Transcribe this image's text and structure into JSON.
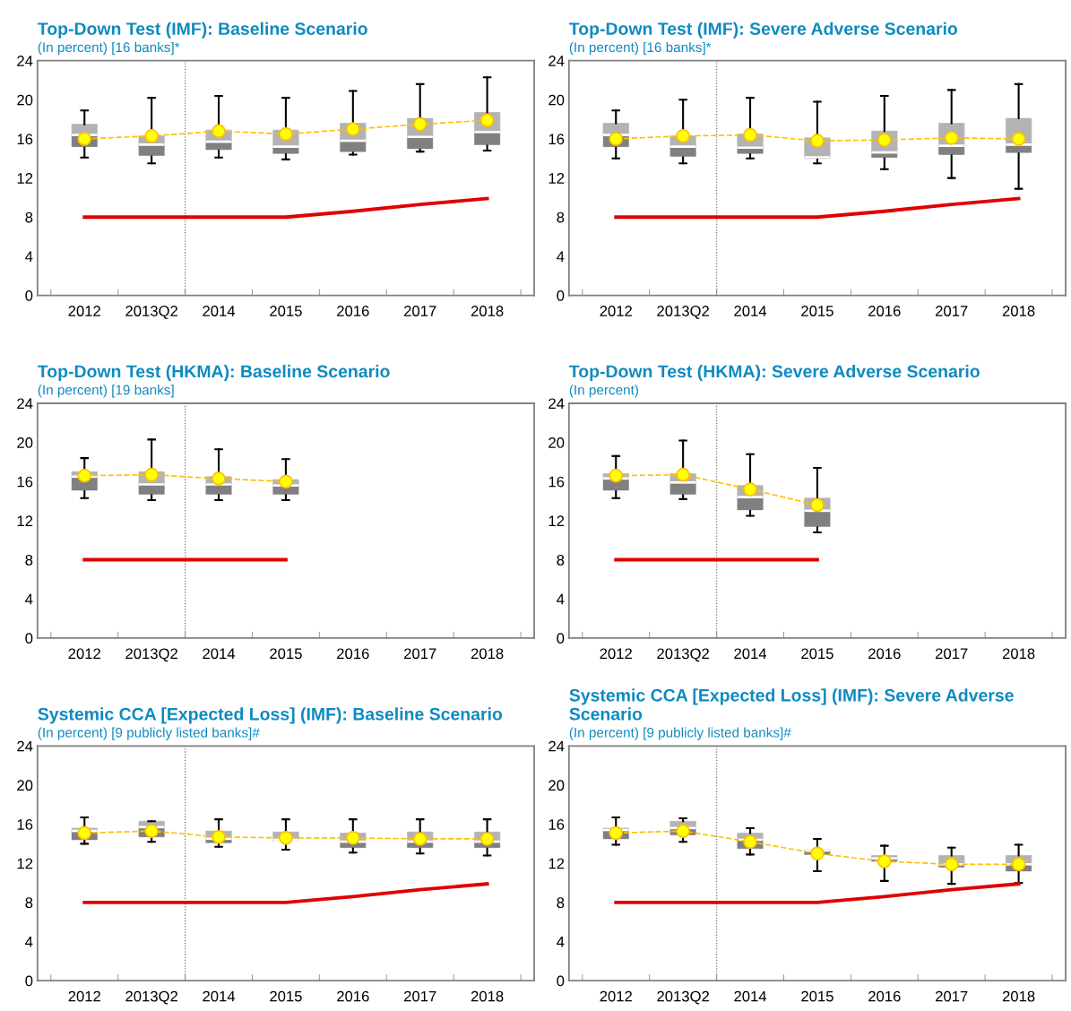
{
  "chart_data": [
    {
      "type": "box",
      "title": "Top-Down Test (IMF): Baseline Scenario",
      "subtitle": "(In percent) [16 banks]*",
      "categories": [
        "2012",
        "2013Q2",
        "2014",
        "2015",
        "2016",
        "2017",
        "2018"
      ],
      "ylim": [
        0,
        24
      ],
      "yticks": [
        0,
        4,
        8,
        12,
        16,
        20,
        24
      ],
      "grid": false,
      "legend": false,
      "series": [
        {
          "type": "box",
          "color": "#808080",
          "boxes": [
            {
              "low": 14.1,
              "q1": 15.2,
              "median": 16.4,
              "q3": 17.5,
              "high": 18.9
            },
            {
              "low": 13.5,
              "q1": 14.3,
              "median": 15.4,
              "q3": 16.3,
              "high": 20.2
            },
            {
              "low": 14.1,
              "q1": 14.9,
              "median": 15.7,
              "q3": 16.9,
              "high": 20.4
            },
            {
              "low": 13.9,
              "q1": 14.5,
              "median": 15.2,
              "q3": 16.9,
              "high": 20.2
            },
            {
              "low": 14.4,
              "q1": 14.7,
              "median": 15.8,
              "q3": 17.6,
              "high": 20.9
            },
            {
              "low": 14.7,
              "q1": 15.0,
              "median": 16.2,
              "q3": 18.1,
              "high": 21.6
            },
            {
              "low": 14.8,
              "q1": 15.4,
              "median": 16.7,
              "q3": 18.7,
              "high": 22.3
            }
          ]
        },
        {
          "type": "line",
          "color": "#ffc000",
          "line_style": "dashed",
          "marker": "circle",
          "values": [
            16.0,
            16.3,
            16.8,
            16.5,
            17.0,
            17.5,
            17.9
          ]
        },
        {
          "type": "line",
          "color": "#e00000",
          "line_style": "solid",
          "marker": "none",
          "values": [
            8,
            8,
            8,
            8,
            8.6,
            9.3,
            9.9
          ]
        }
      ]
    },
    {
      "type": "box",
      "title": "Top-Down Test (IMF): Severe Adverse Scenario",
      "subtitle": "(In percent) [16 banks]*",
      "categories": [
        "2012",
        "2013Q2",
        "2014",
        "2015",
        "2016",
        "2017",
        "2018"
      ],
      "ylim": [
        0,
        24
      ],
      "yticks": [
        0,
        4,
        8,
        12,
        16,
        20,
        24
      ],
      "grid": false,
      "legend": false,
      "series": [
        {
          "type": "box",
          "color": "#808080",
          "boxes": [
            {
              "low": 14.0,
              "q1": 15.2,
              "median": 16.4,
              "q3": 17.6,
              "high": 18.9
            },
            {
              "low": 13.5,
              "q1": 14.2,
              "median": 15.2,
              "q3": 16.3,
              "high": 20.0
            },
            {
              "low": 14.0,
              "q1": 14.5,
              "median": 15.1,
              "q3": 16.5,
              "high": 20.2
            },
            {
              "low": 13.5,
              "q1": 14.0,
              "median": 14.1,
              "q3": 16.1,
              "high": 19.8
            },
            {
              "low": 12.9,
              "q1": 14.1,
              "median": 14.6,
              "q3": 16.8,
              "high": 20.4
            },
            {
              "low": 12.0,
              "q1": 14.4,
              "median": 15.3,
              "q3": 17.6,
              "high": 21.0
            },
            {
              "low": 10.9,
              "q1": 14.6,
              "median": 15.4,
              "q3": 18.1,
              "high": 21.6
            }
          ]
        },
        {
          "type": "line",
          "color": "#ffc000",
          "line_style": "dashed",
          "marker": "circle",
          "values": [
            16.0,
            16.3,
            16.4,
            15.8,
            15.9,
            16.1,
            16.0
          ]
        },
        {
          "type": "line",
          "color": "#e00000",
          "line_style": "solid",
          "marker": "none",
          "values": [
            8,
            8,
            8,
            8,
            8.6,
            9.3,
            9.9
          ]
        }
      ]
    },
    {
      "type": "box",
      "title": "Top-Down Test (HKMA): Baseline Scenario",
      "subtitle": "(In percent) [19 banks]",
      "categories": [
        "2012",
        "2013Q2",
        "2014",
        "2015",
        "2016",
        "2017",
        "2018"
      ],
      "ylim": [
        0,
        24
      ],
      "yticks": [
        0,
        4,
        8,
        12,
        16,
        20,
        24
      ],
      "grid": false,
      "legend": false,
      "series": [
        {
          "type": "box",
          "color": "#808080",
          "boxes": [
            {
              "low": 14.3,
              "q1": 15.1,
              "median": 16.5,
              "q3": 17.0,
              "high": 18.4
            },
            {
              "low": 14.1,
              "q1": 14.7,
              "median": 15.7,
              "q3": 17.0,
              "high": 20.3
            },
            {
              "low": 14.1,
              "q1": 14.7,
              "median": 15.7,
              "q3": 16.5,
              "high": 19.3
            },
            {
              "low": 14.1,
              "q1": 14.7,
              "median": 15.6,
              "q3": 16.2,
              "high": 18.3
            },
            null,
            null,
            null
          ]
        },
        {
          "type": "line",
          "color": "#ffc000",
          "line_style": "dashed",
          "marker": "circle",
          "values": [
            16.6,
            16.7,
            16.3,
            16.0,
            null,
            null,
            null
          ]
        },
        {
          "type": "line",
          "color": "#e00000",
          "line_style": "solid",
          "marker": "none",
          "values": [
            8,
            8,
            8,
            8,
            null,
            null,
            null
          ]
        }
      ]
    },
    {
      "type": "box",
      "title": "Top-Down Test (HKMA): Severe Adverse Scenario",
      "subtitle": "(In percent)",
      "categories": [
        "2012",
        "2013Q2",
        "2014",
        "2015",
        "2016",
        "2017",
        "2018"
      ],
      "ylim": [
        0,
        24
      ],
      "yticks": [
        0,
        4,
        8,
        12,
        16,
        20,
        24
      ],
      "grid": false,
      "legend": false,
      "series": [
        {
          "type": "box",
          "color": "#808080",
          "boxes": [
            {
              "low": 14.3,
              "q1": 15.1,
              "median": 16.3,
              "q3": 16.8,
              "high": 18.6
            },
            {
              "low": 14.2,
              "q1": 14.7,
              "median": 15.9,
              "q3": 16.8,
              "high": 20.2
            },
            {
              "low": 12.5,
              "q1": 13.1,
              "median": 14.4,
              "q3": 15.6,
              "high": 18.8
            },
            {
              "low": 10.8,
              "q1": 11.4,
              "median": 13.0,
              "q3": 14.3,
              "high": 17.4
            },
            null,
            null,
            null
          ]
        },
        {
          "type": "line",
          "color": "#ffc000",
          "line_style": "dashed",
          "marker": "circle",
          "values": [
            16.6,
            16.7,
            15.2,
            13.6,
            null,
            null,
            null
          ]
        },
        {
          "type": "line",
          "color": "#e00000",
          "line_style": "solid",
          "marker": "none",
          "values": [
            8,
            8,
            8,
            8,
            null,
            null,
            null
          ]
        }
      ]
    },
    {
      "type": "box",
      "title": "Systemic CCA [Expected Loss] (IMF): Baseline Scenario",
      "subtitle": "(In percent) [9 publicly listed banks]#",
      "categories": [
        "2012",
        "2013Q2",
        "2014",
        "2015",
        "2016",
        "2017",
        "2018"
      ],
      "ylim": [
        0,
        24
      ],
      "yticks": [
        0,
        4,
        8,
        12,
        16,
        20,
        24
      ],
      "grid": false,
      "legend": false,
      "series": [
        {
          "type": "box",
          "color": "#808080",
          "boxes": [
            {
              "low": 14.0,
              "q1": 14.4,
              "median": 15.3,
              "q3": 15.6,
              "high": 16.7
            },
            {
              "low": 14.2,
              "q1": 14.7,
              "median": 15.7,
              "q3": 16.3,
              "high": 16.3
            },
            {
              "low": 13.7,
              "q1": 14.1,
              "median": 14.5,
              "q3": 15.3,
              "high": 16.5
            },
            {
              "low": 13.4,
              "q1": 14.3,
              "median": 14.4,
              "q3": 15.2,
              "high": 16.5
            },
            {
              "low": 13.1,
              "q1": 13.6,
              "median": 14.2,
              "q3": 15.1,
              "high": 16.5
            },
            {
              "low": 13.0,
              "q1": 13.6,
              "median": 14.2,
              "q3": 15.2,
              "high": 16.5
            },
            {
              "low": 12.8,
              "q1": 13.6,
              "median": 14.2,
              "q3": 15.2,
              "high": 16.5
            }
          ]
        },
        {
          "type": "line",
          "color": "#ffc000",
          "line_style": "dashed",
          "marker": "circle",
          "values": [
            15.1,
            15.3,
            14.7,
            14.6,
            14.6,
            14.5,
            14.5
          ]
        },
        {
          "type": "line",
          "color": "#e00000",
          "line_style": "solid",
          "marker": "none",
          "values": [
            8,
            8,
            8,
            8,
            8.6,
            9.3,
            9.9
          ]
        }
      ]
    },
    {
      "type": "box",
      "title": "Systemic CCA [Expected Loss] (IMF): Severe Adverse Scenario",
      "subtitle": "(In percent) [9 publicly listed banks]#",
      "categories": [
        "2012",
        "2013Q2",
        "2014",
        "2015",
        "2016",
        "2017",
        "2018"
      ],
      "ylim": [
        0,
        24
      ],
      "yticks": [
        0,
        4,
        8,
        12,
        16,
        20,
        24
      ],
      "grid": false,
      "legend": false,
      "series": [
        {
          "type": "box",
          "color": "#808080",
          "boxes": [
            {
              "low": 13.9,
              "q1": 14.5,
              "median": 15.4,
              "q3": 15.6,
              "high": 16.7
            },
            {
              "low": 14.2,
              "q1": 14.9,
              "median": 15.6,
              "q3": 16.3,
              "high": 16.6
            },
            {
              "low": 12.9,
              "q1": 13.5,
              "median": 14.4,
              "q3": 15.1,
              "high": 15.6
            },
            {
              "low": 11.2,
              "q1": 12.9,
              "median": 13.3,
              "q3": 13.4,
              "high": 14.5
            },
            {
              "low": 10.2,
              "q1": 12.2,
              "median": 12.5,
              "q3": 12.8,
              "high": 13.8
            },
            {
              "low": 9.9,
              "q1": 11.6,
              "median": 11.9,
              "q3": 12.8,
              "high": 13.6
            },
            {
              "low": 10.0,
              "q1": 11.2,
              "median": 11.9,
              "q3": 12.8,
              "high": 13.9
            }
          ]
        },
        {
          "type": "line",
          "color": "#ffc000",
          "line_style": "dashed",
          "marker": "circle",
          "values": [
            15.1,
            15.3,
            14.2,
            13.0,
            12.2,
            11.9,
            11.9
          ]
        },
        {
          "type": "line",
          "color": "#e00000",
          "line_style": "solid",
          "marker": "none",
          "values": [
            8,
            8,
            8,
            8,
            8.6,
            9.3,
            9.9
          ]
        }
      ]
    }
  ]
}
